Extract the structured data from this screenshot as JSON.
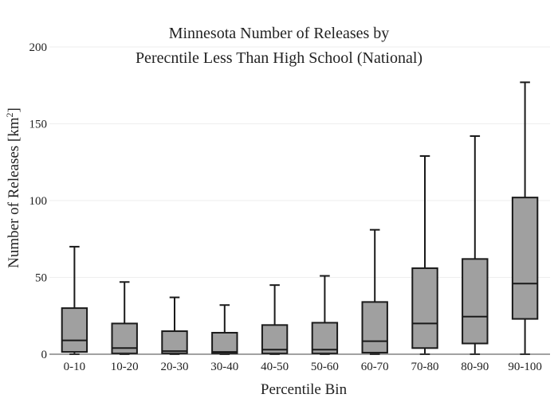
{
  "chart_data": {
    "type": "box",
    "title_lines": [
      "Minnesota Number of Releases by",
      "Perecntile Less Than High School (National)"
    ],
    "xlabel": "Percentile Bin",
    "ylabel_main": "Number of Releases  [km",
    "ylabel_sup": "2",
    "ylabel_end": "]",
    "ylim": [
      0,
      200
    ],
    "yticks": [
      0,
      50,
      100,
      150,
      200
    ],
    "grid": true,
    "categories": [
      "0-10",
      "10-20",
      "20-30",
      "30-40",
      "40-50",
      "50-60",
      "60-70",
      "70-80",
      "80-90",
      "90-100"
    ],
    "boxes": [
      {
        "min": 0,
        "q1": 1.5,
        "median": 9,
        "q3": 30,
        "max": 70
      },
      {
        "min": 0,
        "q1": 0.5,
        "median": 4,
        "q3": 20,
        "max": 47
      },
      {
        "min": 0,
        "q1": 0.5,
        "median": 2,
        "q3": 15,
        "max": 37
      },
      {
        "min": 0,
        "q1": 0.5,
        "median": 1.5,
        "q3": 14,
        "max": 32
      },
      {
        "min": 0,
        "q1": 0.5,
        "median": 3,
        "q3": 19,
        "max": 45
      },
      {
        "min": 0,
        "q1": 0.5,
        "median": 3,
        "q3": 20.5,
        "max": 51
      },
      {
        "min": 0,
        "q1": 1,
        "median": 8.5,
        "q3": 34,
        "max": 81
      },
      {
        "min": 0,
        "q1": 4,
        "median": 20,
        "q3": 56,
        "max": 129
      },
      {
        "min": 0,
        "q1": 7,
        "median": 24.5,
        "q3": 62,
        "max": 142
      },
      {
        "min": 0,
        "q1": 23,
        "median": 46,
        "q3": 102,
        "max": 177
      }
    ],
    "colors": {
      "box_fill": "#a0a0a0",
      "box_stroke": "#1a1a1a",
      "grid": "#eeeeee",
      "axis": "#444444"
    }
  }
}
